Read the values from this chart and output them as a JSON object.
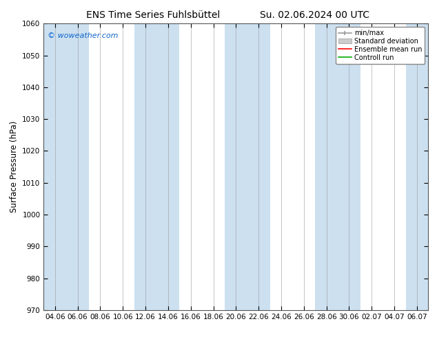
{
  "title_left": "ENS Time Series Fuhlsbüttel",
  "title_right": "Su. 02.06.2024 00 UTC",
  "ylabel": "Surface Pressure (hPa)",
  "ylim": [
    970,
    1060
  ],
  "yticks": [
    970,
    980,
    990,
    1000,
    1010,
    1020,
    1030,
    1040,
    1050,
    1060
  ],
  "xlabels": [
    "04.06",
    "06.06",
    "08.06",
    "10.06",
    "12.06",
    "14.06",
    "16.06",
    "18.06",
    "20.06",
    "22.06",
    "24.06",
    "26.06",
    "28.06",
    "30.06",
    "02.07",
    "04.07",
    "06.07"
  ],
  "band_color": "#cce0f0",
  "band_color_odd": "#ffffff",
  "watermark": "© woweather.com",
  "watermark_color": "#1166cc",
  "legend_labels": [
    "min/max",
    "Standard deviation",
    "Ensemble mean run",
    "Controll run"
  ],
  "legend_colors": [
    "#aaaaaa",
    "#cccccc",
    "#ff0000",
    "#00aa00"
  ],
  "title_fontsize": 10,
  "tick_fontsize": 7.5,
  "ylabel_fontsize": 8.5,
  "background_color": "#ffffff",
  "fig_width": 6.34,
  "fig_height": 4.9,
  "dpi": 100
}
